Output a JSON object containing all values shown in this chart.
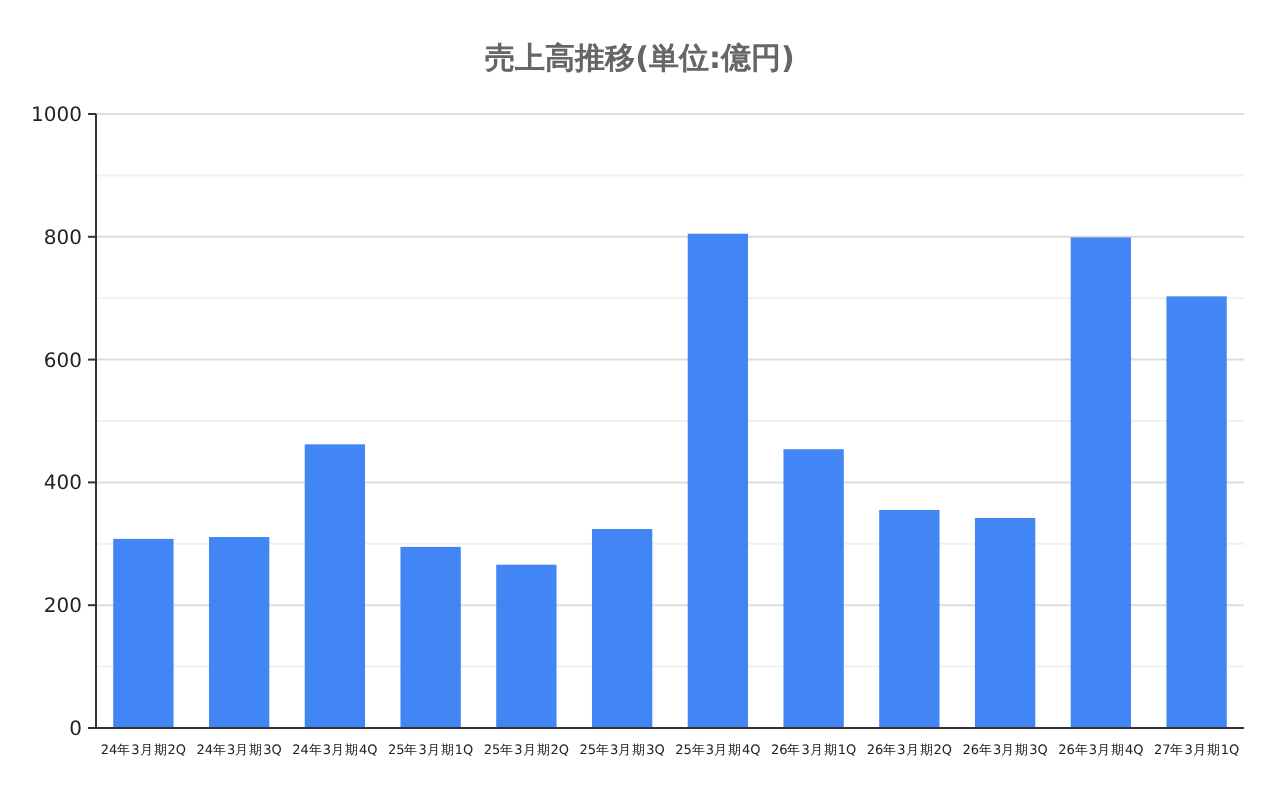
{
  "chart_data": {
    "type": "bar",
    "title": "売上高推移(単位:億円)",
    "categories": [
      "24年3月期2Q",
      "24年3月期3Q",
      "24年3月期4Q",
      "25年3月期1Q",
      "25年3月期2Q",
      "25年3月期3Q",
      "25年3月期4Q",
      "26年3月期1Q",
      "26年3月期2Q",
      "26年3月期3Q",
      "26年3月期4Q",
      "27年3月期1Q"
    ],
    "values": [
      308,
      311,
      462,
      295,
      266,
      324,
      805,
      454,
      355,
      342,
      799,
      703
    ],
    "color": "#4285f4",
    "ylim": [
      0,
      1000
    ],
    "yticks": [
      0,
      {
        "value": 100,
        "label": null
      },
      200,
      {
        "value": 300,
        "label": null
      },
      400,
      {
        "value": 500,
        "label": null
      },
      600,
      {
        "value": 700,
        "label": null
      },
      800,
      {
        "value": 900,
        "label": null
      },
      1000
    ],
    "grid": true
  }
}
